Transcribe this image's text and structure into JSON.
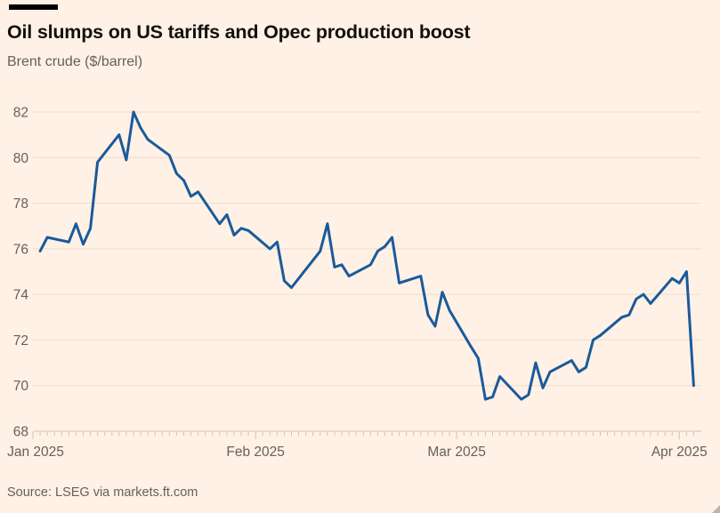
{
  "chart_data": {
    "type": "line",
    "title": "Oil slumps on US tariffs and Opec production boost",
    "subtitle": "Brent crude ($/barrel)",
    "source": "Source: LSEG via markets.ft.com",
    "xlabel": "",
    "ylabel": "Brent crude ($/barrel)",
    "ylim": [
      68,
      82
    ],
    "xlim": [
      "2025-01-01",
      "2025-04-05"
    ],
    "y_ticks": [
      68,
      70,
      72,
      74,
      76,
      78,
      80,
      82
    ],
    "x_ticks": [
      {
        "label": "Jan 2025",
        "date": "2025-01-01"
      },
      {
        "label": "Feb 2025",
        "date": "2025-02-01"
      },
      {
        "label": "Mar 2025",
        "date": "2025-03-01"
      },
      {
        "label": "Apr 2025",
        "date": "2025-04-01"
      }
    ],
    "grid": "horizontal",
    "legend": "none",
    "colors": {
      "background": "#FFF1E5",
      "line": "#1A5A9B",
      "text_muted": "#66605B",
      "gridline": "#EFDCCB",
      "axis": "#D2C1B1",
      "title_text": "#121110",
      "brand_bar": "#000000"
    },
    "series": [
      {
        "name": "Brent crude",
        "color": "#1A5A9B",
        "dates": [
          "2025-01-02",
          "2025-01-03",
          "2025-01-06",
          "2025-01-07",
          "2025-01-08",
          "2025-01-09",
          "2025-01-10",
          "2025-01-13",
          "2025-01-14",
          "2025-01-15",
          "2025-01-16",
          "2025-01-17",
          "2025-01-20",
          "2025-01-21",
          "2025-01-22",
          "2025-01-23",
          "2025-01-24",
          "2025-01-27",
          "2025-01-28",
          "2025-01-29",
          "2025-01-30",
          "2025-01-31",
          "2025-02-03",
          "2025-02-04",
          "2025-02-05",
          "2025-02-06",
          "2025-02-07",
          "2025-02-10",
          "2025-02-11",
          "2025-02-12",
          "2025-02-13",
          "2025-02-14",
          "2025-02-17",
          "2025-02-18",
          "2025-02-19",
          "2025-02-20",
          "2025-02-21",
          "2025-02-24",
          "2025-02-25",
          "2025-02-26",
          "2025-02-27",
          "2025-02-28",
          "2025-03-03",
          "2025-03-04",
          "2025-03-05",
          "2025-03-06",
          "2025-03-07",
          "2025-03-10",
          "2025-03-11",
          "2025-03-12",
          "2025-03-13",
          "2025-03-14",
          "2025-03-17",
          "2025-03-18",
          "2025-03-19",
          "2025-03-20",
          "2025-03-21",
          "2025-03-24",
          "2025-03-25",
          "2025-03-26",
          "2025-03-27",
          "2025-03-28",
          "2025-03-31",
          "2025-04-01",
          "2025-04-02",
          "2025-04-03"
        ],
        "values": [
          75.9,
          76.5,
          76.3,
          77.1,
          76.2,
          76.9,
          79.8,
          81.0,
          79.9,
          82.0,
          81.3,
          80.8,
          80.1,
          79.3,
          79.0,
          78.3,
          78.5,
          77.1,
          77.5,
          76.6,
          76.9,
          76.8,
          76.0,
          76.3,
          74.6,
          74.3,
          74.7,
          75.9,
          77.1,
          75.2,
          75.3,
          74.8,
          75.3,
          75.9,
          76.1,
          76.5,
          74.5,
          74.8,
          73.1,
          72.6,
          74.1,
          73.3,
          71.7,
          71.2,
          69.4,
          69.5,
          70.4,
          69.4,
          69.6,
          71.0,
          69.9,
          70.6,
          71.1,
          70.6,
          70.8,
          72.0,
          72.2,
          73.0,
          73.1,
          73.8,
          74.0,
          73.6,
          74.7,
          74.5,
          75.0,
          70.0
        ]
      }
    ]
  }
}
